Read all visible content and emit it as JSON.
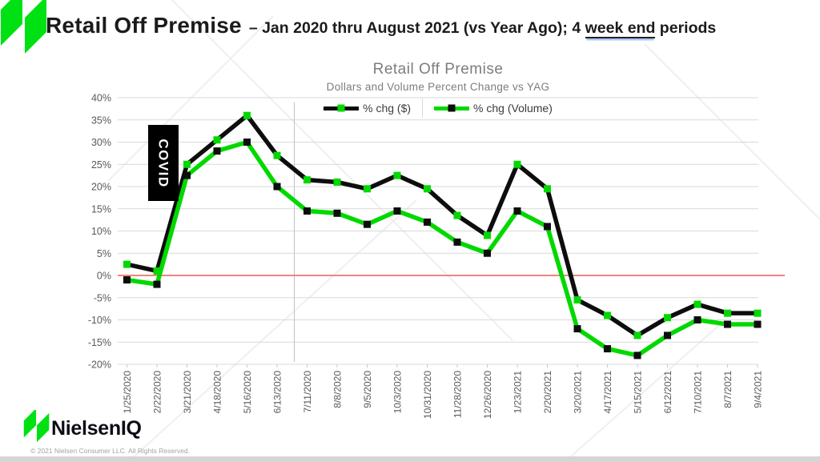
{
  "header": {
    "title_main": "Retail Off Premise",
    "title_rest_1": "– Jan 2020 thru August 2021 (vs Year Ago); 4 ",
    "title_underlined": "week end",
    "title_rest_2": " periods"
  },
  "chart_data": {
    "type": "line",
    "title": "Retail Off Premise",
    "subtitle": "Dollars and Volume Percent Change vs YAG",
    "annotation": "COVID",
    "legend_position": "top",
    "grid": true,
    "ylim": [
      -20,
      40
    ],
    "ytick_step": 5,
    "ytick_suffix": "%",
    "zero_line_color": "#ec7468",
    "grid_color": "#d9d9d9",
    "axis_text_color": "#595959",
    "x": [
      "1/25/2020",
      "2/22/2020",
      "3/21/2020",
      "4/18/2020",
      "5/16/2020",
      "6/13/2020",
      "7/11/2020",
      "8/8/2020",
      "9/5/2020",
      "10/3/2020",
      "10/31/2020",
      "11/28/2020",
      "12/26/2020",
      "1/23/2021",
      "2/20/2021",
      "3/20/2021",
      "4/17/2021",
      "5/15/2021",
      "6/12/2021",
      "7/10/2021",
      "8/7/2021",
      "9/4/2021"
    ],
    "series": [
      {
        "name": "% chg ($)",
        "line_color": "#0d0d0d",
        "marker_color": "#00d900",
        "values": [
          2.5,
          1,
          25,
          30.5,
          36,
          27,
          21.5,
          21,
          19.5,
          22.5,
          19.5,
          13.5,
          9,
          25,
          19.5,
          -5.5,
          -9,
          -13.5,
          -9.5,
          -6.5,
          -8.5,
          -8.5
        ]
      },
      {
        "name": "% chg (Volume)",
        "line_color": "#00d900",
        "marker_color": "#0d0d0d",
        "values": [
          -1,
          -2,
          22.5,
          28,
          30,
          20,
          14.5,
          14,
          11.5,
          14.5,
          12,
          7.5,
          5,
          14.5,
          11,
          -12,
          -16.5,
          -18,
          -13.5,
          -10,
          -11,
          -11
        ]
      }
    ]
  },
  "footer": {
    "brand": "NielsenIQ",
    "copyright": "© 2021 Nielsen Consumer LLC. All Rights Reserved."
  },
  "colors": {
    "logo_green": "#00e114",
    "title_text": "#1b1b1b",
    "chart_gray": "#7d7d7d",
    "watermark": "#efefef",
    "bottom_strip": "#d5d5d5"
  }
}
